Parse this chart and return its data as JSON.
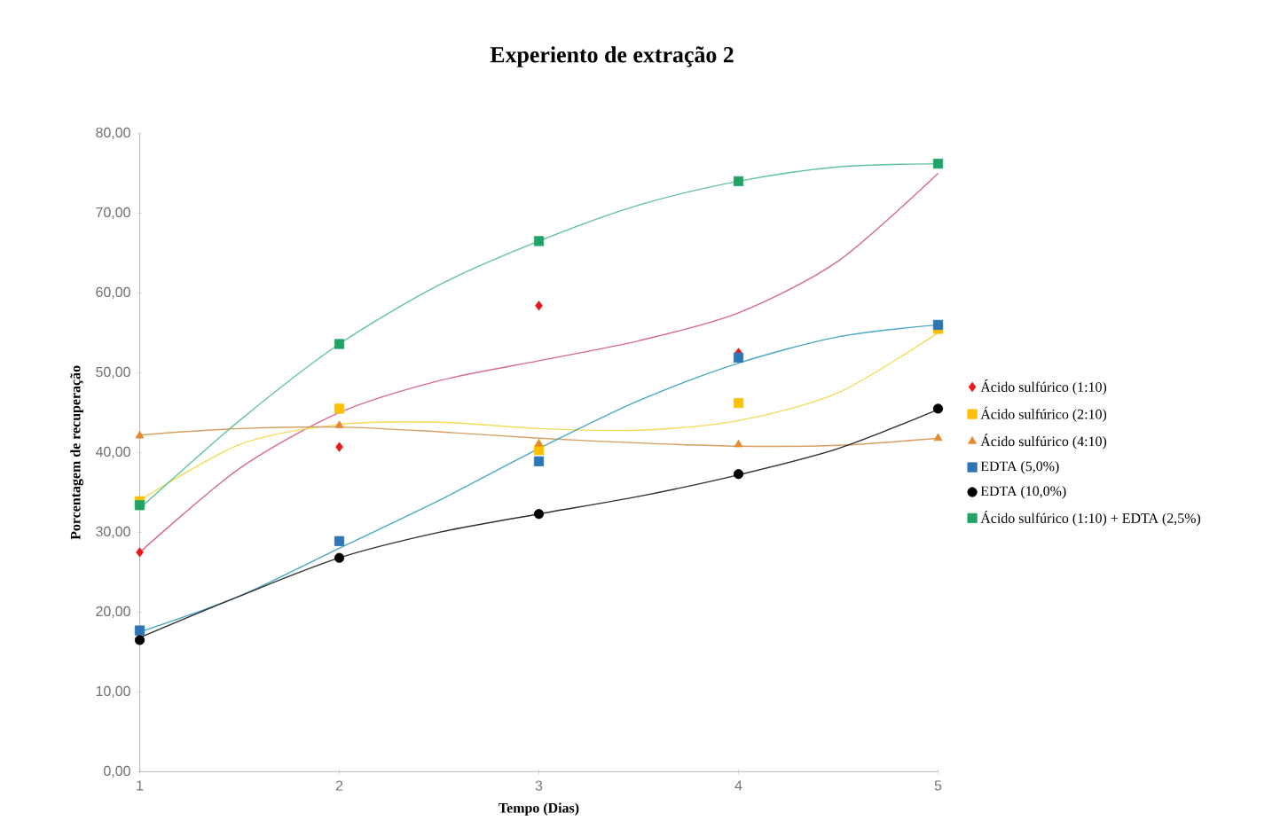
{
  "chart_data": {
    "type": "scatter",
    "title": "Experiento de extração 2",
    "xlabel": "Tempo (Dias)",
    "ylabel": "Porcentagem de recuperação",
    "xlim": [
      1,
      5
    ],
    "xticks": [
      1,
      2,
      3,
      4,
      5
    ],
    "ylim": [
      0,
      80
    ],
    "yticks": [
      {
        "value": 0,
        "label": "0,00"
      },
      {
        "value": 10,
        "label": "10,00"
      },
      {
        "value": 20,
        "label": "20,00"
      },
      {
        "value": 30,
        "label": "30,00"
      },
      {
        "value": 40,
        "label": "40,00"
      },
      {
        "value": 50,
        "label": "50,00"
      },
      {
        "value": 60,
        "label": "60,00"
      },
      {
        "value": 70,
        "label": "70,00"
      },
      {
        "value": 80,
        "label": "80,00"
      }
    ],
    "grid": false,
    "legend": "right",
    "series": [
      {
        "type": "line",
        "marker": "none",
        "color": "#d86a8a",
        "x": [
          1,
          1.5,
          2,
          2.5,
          3,
          3.5,
          4,
          4.5,
          5
        ],
        "values": [
          27.5,
          38,
          45,
          49,
          51.5,
          54,
          57.5,
          64,
          75
        ]
      },
      {
        "type": "line",
        "marker": "none",
        "color": "#f2dc5a",
        "x": [
          1,
          1.5,
          2,
          2.5,
          3,
          3.5,
          4,
          4.5,
          5
        ],
        "values": [
          34,
          41,
          43.5,
          43.8,
          43,
          42.8,
          44,
          47.5,
          55
        ]
      },
      {
        "type": "line",
        "marker": "none",
        "color": "#d6a060",
        "x": [
          1,
          1.5,
          2,
          2.5,
          3,
          3.5,
          4,
          4.5,
          5
        ],
        "values": [
          42.2,
          43,
          43.2,
          42.6,
          41.8,
          41.2,
          40.8,
          40.9,
          41.8
        ]
      },
      {
        "type": "line",
        "marker": "none",
        "color": "#4aa8c8",
        "x": [
          1,
          1.5,
          2,
          2.5,
          3,
          3.5,
          4,
          4.5,
          5
        ],
        "values": [
          17.5,
          22,
          28,
          34,
          40.5,
          46.5,
          51.2,
          54.5,
          56
        ]
      },
      {
        "type": "line",
        "marker": "none",
        "color": "#303030",
        "x": [
          1,
          1.5,
          2,
          2.5,
          3,
          3.5,
          4,
          4.5,
          5
        ],
        "values": [
          16.8,
          22,
          26.8,
          30,
          32.3,
          34.5,
          37.2,
          40.5,
          45.4
        ]
      },
      {
        "type": "line",
        "marker": "none",
        "color": "#5fc3a0",
        "x": [
          1,
          1.5,
          2,
          2.5,
          3,
          3.5,
          4,
          4.5,
          5
        ],
        "values": [
          33,
          44,
          53.6,
          61,
          66.5,
          71,
          74,
          75.8,
          76.2
        ]
      },
      {
        "name": "Ácido sulfúrico (1:10)",
        "marker": "diamond",
        "color": "#e31a1c",
        "x": [
          1,
          2,
          3,
          4
        ],
        "values": [
          27.5,
          40.7,
          58.4,
          52.5
        ]
      },
      {
        "name": "Ácido sulfúrico (2:10)",
        "marker": "square",
        "color": "#ffc000",
        "x": [
          1,
          2,
          3,
          4,
          5
        ],
        "values": [
          33.9,
          45.5,
          40.3,
          46.2,
          55.5
        ]
      },
      {
        "name": "Ácido sulfúrico (4:10)",
        "marker": "triangle",
        "color": "#e48a2f",
        "x": [
          1,
          2,
          3,
          4,
          5
        ],
        "values": [
          42.1,
          43.4,
          41.1,
          41.0,
          41.8
        ]
      },
      {
        "name": "EDTA (5,0%)",
        "marker": "square",
        "color": "#2e75b6",
        "x": [
          1,
          2,
          3,
          4,
          5
        ],
        "values": [
          17.7,
          28.9,
          38.9,
          51.9,
          56.0
        ]
      },
      {
        "name": "EDTA (10,0%)",
        "marker": "circle",
        "color": "#000000",
        "x": [
          1,
          2,
          3,
          4,
          5
        ],
        "values": [
          16.5,
          26.8,
          32.3,
          37.3,
          45.5
        ]
      },
      {
        "name": "Ácido sulfúrico (1:10) + EDTA (2,5%)",
        "marker": "square",
        "color": "#21a366",
        "x": [
          1,
          2,
          3,
          4,
          5
        ],
        "values": [
          33.4,
          53.6,
          66.5,
          74.0,
          76.2
        ]
      }
    ]
  }
}
